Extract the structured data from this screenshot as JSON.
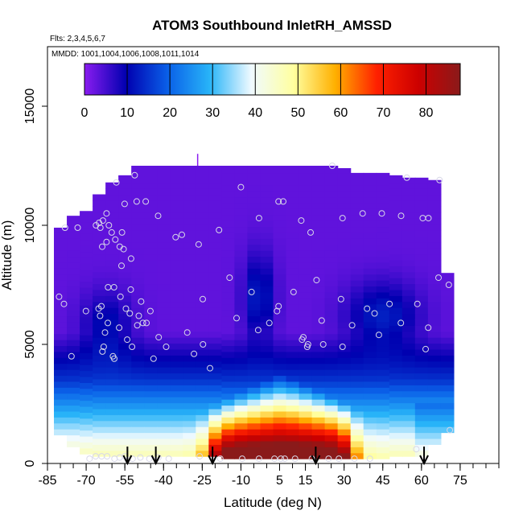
{
  "chart_data": {
    "type": "heatmap",
    "title": "ATOM3 Southbound InletRH_AMSSD",
    "subtitle_flights": "Flts: 2,3,4,5,6,7",
    "subtitle_dates": "MMDD: 1001,1004,1006,1008,1011,1014",
    "xlabel": "Latitude (deg N)",
    "ylabel": "Altitude (m)",
    "xlim": [
      -85,
      90
    ],
    "ylim": [
      0,
      17500
    ],
    "x_ticks": [
      -85,
      -70,
      -55,
      -40,
      -25,
      -10,
      5,
      15,
      30,
      45,
      60,
      75
    ],
    "y_ticks": [
      0,
      5000,
      10000,
      15000
    ],
    "colorbar": {
      "range": [
        0,
        88
      ],
      "ticks": [
        0,
        10,
        20,
        30,
        40,
        50,
        60,
        70,
        80
      ],
      "colors": [
        "#8a1cf0",
        "#0000b0",
        "#0a60e8",
        "#28b4f8",
        "#f0faff",
        "#ffffa0",
        "#ffb000",
        "#ff2000",
        "#cc0000",
        "#8a1a1a"
      ]
    },
    "latitude_bins": [
      -80,
      -75,
      -70,
      -65,
      -60,
      -55,
      -50,
      -45,
      -40,
      -35,
      -30,
      -25,
      -20,
      -15,
      -10,
      -5,
      0,
      5,
      10,
      15,
      20,
      25,
      30,
      35,
      40,
      45,
      50,
      55,
      60,
      65,
      70
    ],
    "altitude_top_m": [
      9900,
      10400,
      10600,
      11300,
      11800,
      12100,
      12500,
      12500,
      12500,
      12500,
      12500,
      12500,
      12500,
      12500,
      12500,
      12500,
      12500,
      12500,
      12500,
      12500,
      12500,
      12500,
      12400,
      12200,
      12200,
      12200,
      12100,
      12000,
      12000,
      11900,
      8000
    ],
    "altitude_bottom_m": [
      1200,
      700,
      400,
      300,
      300,
      300,
      300,
      300,
      300,
      300,
      300,
      300,
      300,
      200,
      200,
      200,
      200,
      200,
      200,
      200,
      200,
      200,
      200,
      200,
      200,
      200,
      300,
      300,
      300,
      800,
      1300
    ],
    "arrow_latitudes": [
      -54,
      -43,
      -21,
      19,
      61
    ],
    "sample_points": [
      {
        "lat": -80.5,
        "alt": 7000
      },
      {
        "lat": -78.6,
        "alt": 6700
      },
      {
        "lat": -75.7,
        "alt": 4500
      },
      {
        "lat": -78.2,
        "alt": 9900
      },
      {
        "lat": -73.3,
        "alt": 9900
      },
      {
        "lat": -70.1,
        "alt": 6400
      },
      {
        "lat": -66.2,
        "alt": 10000
      },
      {
        "lat": -65.0,
        "alt": 10100
      },
      {
        "lat": -64.5,
        "alt": 9900
      },
      {
        "lat": -63.5,
        "alt": 10200
      },
      {
        "lat": -62.1,
        "alt": 9300
      },
      {
        "lat": -60.1,
        "alt": 9700
      },
      {
        "lat": -58.7,
        "alt": 9400
      },
      {
        "lat": -57.0,
        "alt": 9100
      },
      {
        "lat": -55.5,
        "alt": 9000
      },
      {
        "lat": -56.1,
        "alt": 9700
      },
      {
        "lat": -56.3,
        "alt": 8300
      },
      {
        "lat": -65.2,
        "alt": 6500
      },
      {
        "lat": -64.1,
        "alt": 6600
      },
      {
        "lat": -64.6,
        "alt": 6200
      },
      {
        "lat": -62.7,
        "alt": 5500
      },
      {
        "lat": -61.6,
        "alt": 5900
      },
      {
        "lat": -63.2,
        "alt": 4900
      },
      {
        "lat": -63.7,
        "alt": 4700
      },
      {
        "lat": -59.6,
        "alt": 4500
      },
      {
        "lat": -59.1,
        "alt": 4400
      },
      {
        "lat": -57.2,
        "alt": 5700
      },
      {
        "lat": -52.2,
        "alt": 4900
      },
      {
        "lat": -61.5,
        "alt": 7400
      },
      {
        "lat": -59.2,
        "alt": 7400
      },
      {
        "lat": -56.7,
        "alt": 7000
      },
      {
        "lat": -54.6,
        "alt": 6500
      },
      {
        "lat": -52.7,
        "alt": 7300
      },
      {
        "lat": -48.7,
        "alt": 6800
      },
      {
        "lat": -53.1,
        "alt": 6300
      },
      {
        "lat": -50.2,
        "alt": 5800
      },
      {
        "lat": -45.1,
        "alt": 6400
      },
      {
        "lat": -49.6,
        "alt": 6200
      },
      {
        "lat": -46.6,
        "alt": 5900
      },
      {
        "lat": -54.1,
        "alt": 5200
      },
      {
        "lat": -58.3,
        "alt": 11800
      },
      {
        "lat": -55.1,
        "alt": 10900
      },
      {
        "lat": -50.4,
        "alt": 11000
      },
      {
        "lat": -46.9,
        "alt": 11000
      },
      {
        "lat": -51.2,
        "alt": 12100
      },
      {
        "lat": -52.6,
        "alt": 8600
      },
      {
        "lat": -42.1,
        "alt": 10400
      },
      {
        "lat": -32.9,
        "alt": 9600
      },
      {
        "lat": -35.3,
        "alt": 9500
      },
      {
        "lat": -26.4,
        "alt": 9200
      },
      {
        "lat": -18.5,
        "alt": 9800
      },
      {
        "lat": -10.0,
        "alt": 11600
      },
      {
        "lat": -3.0,
        "alt": 10300
      },
      {
        "lat": 4.6,
        "alt": 11000
      },
      {
        "lat": 6.4,
        "alt": 11000
      },
      {
        "lat": 13.4,
        "alt": 10200
      },
      {
        "lat": 17.0,
        "alt": 9700
      },
      {
        "lat": 29.4,
        "alt": 10300
      },
      {
        "lat": 37.2,
        "alt": 10500
      },
      {
        "lat": 44.6,
        "alt": 10500
      },
      {
        "lat": 52.1,
        "alt": 10400
      },
      {
        "lat": 60.5,
        "alt": 10300
      },
      {
        "lat": 62.7,
        "alt": 10300
      },
      {
        "lat": 25.4,
        "alt": 12500
      },
      {
        "lat": 54.3,
        "alt": 12000
      },
      {
        "lat": 67.0,
        "alt": 11900
      },
      {
        "lat": -14.4,
        "alt": 7800
      },
      {
        "lat": -24.8,
        "alt": 6900
      },
      {
        "lat": -3.3,
        "alt": 5600
      },
      {
        "lat": 1.0,
        "alt": 5900
      },
      {
        "lat": 4.0,
        "alt": 6400
      },
      {
        "lat": 4.6,
        "alt": 6600
      },
      {
        "lat": -11.7,
        "alt": 6100
      },
      {
        "lat": -5.9,
        "alt": 7200
      },
      {
        "lat": 10.4,
        "alt": 7200
      },
      {
        "lat": 14.2,
        "alt": 5300
      },
      {
        "lat": 19.3,
        "alt": 7700
      },
      {
        "lat": 15.7,
        "alt": 4900
      },
      {
        "lat": 13.7,
        "alt": 5200
      },
      {
        "lat": 16.0,
        "alt": 5000
      },
      {
        "lat": 21.9,
        "alt": 5000
      },
      {
        "lat": 21.3,
        "alt": 6000
      },
      {
        "lat": 29.4,
        "alt": 4900
      },
      {
        "lat": 33.1,
        "alt": 5800
      },
      {
        "lat": 28.8,
        "alt": 6900
      },
      {
        "lat": 41.8,
        "alt": 6300
      },
      {
        "lat": 47.6,
        "alt": 6700
      },
      {
        "lat": 38.9,
        "alt": 6500
      },
      {
        "lat": 43.5,
        "alt": 5400
      },
      {
        "lat": 52.0,
        "alt": 5900
      },
      {
        "lat": 58.4,
        "alt": 6700
      },
      {
        "lat": 62.6,
        "alt": 5700
      },
      {
        "lat": 61.6,
        "alt": 4800
      },
      {
        "lat": 66.6,
        "alt": 7800
      },
      {
        "lat": 70.6,
        "alt": 7500
      },
      {
        "lat": 71.0,
        "alt": 1400
      },
      {
        "lat": 58.0,
        "alt": 600
      },
      {
        "lat": -30.8,
        "alt": 5500
      },
      {
        "lat": -28.2,
        "alt": 4600
      },
      {
        "lat": -24.7,
        "alt": 5000
      },
      {
        "lat": -39.0,
        "alt": 4900
      },
      {
        "lat": -41.9,
        "alt": 5300
      },
      {
        "lat": -61.2,
        "alt": 10000
      },
      {
        "lat": -63.8,
        "alt": 9100
      },
      {
        "lat": -62.1,
        "alt": 10500
      },
      {
        "lat": -48.0,
        "alt": 5900
      },
      {
        "lat": -43.9,
        "alt": 4400
      },
      {
        "lat": -22.0,
        "alt": 4000
      },
      {
        "lat": -68.7,
        "alt": 200
      },
      {
        "lat": -66.3,
        "alt": 300
      },
      {
        "lat": -64.0,
        "alt": 300
      },
      {
        "lat": -61.9,
        "alt": 300
      },
      {
        "lat": -59.0,
        "alt": 200
      },
      {
        "lat": -57.0,
        "alt": 250
      },
      {
        "lat": -55.0,
        "alt": 300
      },
      {
        "lat": -52.0,
        "alt": 200
      },
      {
        "lat": -49.0,
        "alt": 250
      },
      {
        "lat": -45.5,
        "alt": 200
      },
      {
        "lat": -42.0,
        "alt": 250
      },
      {
        "lat": -38.0,
        "alt": 200
      },
      {
        "lat": -26.0,
        "alt": 300
      },
      {
        "lat": -18.0,
        "alt": 200
      },
      {
        "lat": -9.5,
        "alt": 200
      },
      {
        "lat": -3.0,
        "alt": 200
      },
      {
        "lat": 3.0,
        "alt": 200
      },
      {
        "lat": 5.5,
        "alt": 200
      },
      {
        "lat": 7.0,
        "alt": 200
      },
      {
        "lat": 11.0,
        "alt": 200
      },
      {
        "lat": 17.5,
        "alt": 200
      },
      {
        "lat": 24.0,
        "alt": 200
      },
      {
        "lat": 28.0,
        "alt": 200
      },
      {
        "lat": 34.0,
        "alt": 200
      },
      {
        "lat": 40.0,
        "alt": 200
      }
    ]
  }
}
